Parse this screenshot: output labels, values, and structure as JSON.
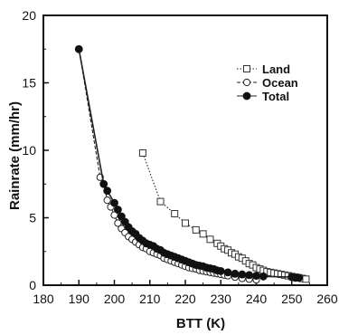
{
  "chart_data": {
    "type": "line",
    "xlabel": "BTT (K)",
    "ylabel": "Rainrate (mm/hr)",
    "xlim": [
      180,
      260
    ],
    "ylim": [
      0,
      20
    ],
    "x_ticks": [
      "180",
      "190",
      "200",
      "210",
      "220",
      "230",
      "240",
      "250",
      "260"
    ],
    "y_ticks": [
      "0",
      "5",
      "10",
      "15",
      "20"
    ],
    "legend_position": "top-right",
    "series": [
      {
        "name": "Land",
        "marker": "open-square",
        "line_style": "dotted",
        "x": [
          208,
          213,
          217,
          220,
          223,
          225,
          227,
          229,
          230,
          231,
          232,
          233,
          234,
          235,
          236,
          237,
          238,
          239,
          240,
          241,
          242,
          243,
          244,
          245,
          246,
          247,
          248,
          249,
          250,
          251,
          252,
          253,
          254
        ],
        "y": [
          9.8,
          6.2,
          5.3,
          4.6,
          4.1,
          3.8,
          3.4,
          3.1,
          2.9,
          2.7,
          2.6,
          2.4,
          2.3,
          2.1,
          2.0,
          1.8,
          1.6,
          1.5,
          1.3,
          1.2,
          1.1,
          1.0,
          0.95,
          0.9,
          0.85,
          0.8,
          0.75,
          0.7,
          0.65,
          0.6,
          0.55,
          0.5,
          0.45
        ]
      },
      {
        "name": "Ocean",
        "marker": "open-circle",
        "line_style": "dashed",
        "x": [
          190,
          196,
          197,
          198,
          199,
          200,
          201,
          202,
          203,
          204,
          205,
          206,
          207,
          208,
          209,
          210,
          211,
          212,
          213,
          214,
          215,
          216,
          217,
          218,
          219,
          220,
          221,
          222,
          223,
          224,
          225,
          226,
          227,
          228,
          229,
          230,
          231,
          232,
          234,
          236,
          238,
          240
        ],
        "y": [
          17.5,
          8.0,
          7.5,
          6.3,
          5.8,
          5.2,
          4.6,
          4.2,
          3.9,
          3.6,
          3.4,
          3.2,
          3.0,
          2.8,
          2.7,
          2.5,
          2.4,
          2.3,
          2.2,
          2.0,
          1.9,
          1.8,
          1.7,
          1.6,
          1.5,
          1.4,
          1.3,
          1.25,
          1.2,
          1.1,
          1.05,
          1.0,
          0.95,
          0.9,
          0.85,
          0.8,
          0.75,
          0.7,
          0.6,
          0.5,
          0.45,
          0.4
        ]
      },
      {
        "name": "Total",
        "marker": "filled-circle",
        "line_style": "solid",
        "x": [
          190,
          197,
          198,
          200,
          201,
          202,
          203,
          204,
          205,
          206,
          207,
          208,
          209,
          210,
          211,
          212,
          213,
          214,
          215,
          216,
          217,
          218,
          219,
          220,
          221,
          222,
          223,
          224,
          225,
          226,
          227,
          228,
          229,
          230,
          232,
          234,
          236,
          238,
          240,
          242,
          250,
          251,
          252
        ],
        "y": [
          17.5,
          7.5,
          7.0,
          6.1,
          5.6,
          5.1,
          4.7,
          4.3,
          4.0,
          3.8,
          3.5,
          3.3,
          3.1,
          3.0,
          2.9,
          2.7,
          2.6,
          2.4,
          2.3,
          2.2,
          2.1,
          2.0,
          1.9,
          1.8,
          1.7,
          1.6,
          1.5,
          1.45,
          1.4,
          1.3,
          1.25,
          1.2,
          1.1,
          1.05,
          0.95,
          0.85,
          0.8,
          0.75,
          0.7,
          0.65,
          0.6,
          0.55,
          0.55
        ]
      }
    ]
  }
}
